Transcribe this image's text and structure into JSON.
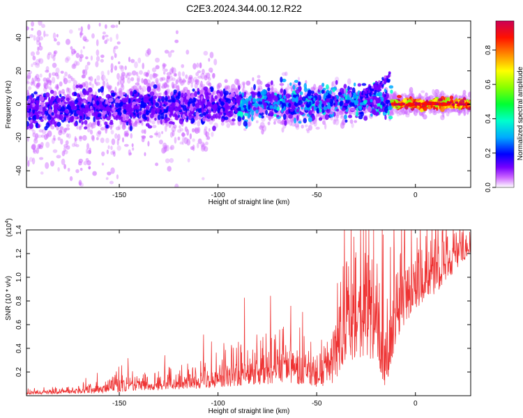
{
  "title": "C2E3.2024.344.00.12.R22",
  "chart_data": [
    {
      "type": "heatmap",
      "xlabel": "Height of straight line (km)",
      "ylabel": "Frequency (Hz)",
      "xlim": [
        -197,
        28
      ],
      "ylim": [
        -50,
        50
      ],
      "xticks": [
        -150,
        -100,
        -50,
        0
      ],
      "yticks": [
        -40,
        -20,
        0,
        20,
        40
      ],
      "colorbar": {
        "label": "Normalized spectral amplitude",
        "range": [
          0.0,
          0.97
        ],
        "ticks": [
          0.0,
          0.2,
          0.4,
          0.6,
          0.8
        ],
        "colormap": [
          "#ffffff",
          "#cc44ff",
          "#4400ff",
          "#0000ff",
          "#00ccff",
          "#00ff88",
          "#44ff00",
          "#ffff00",
          "#ff8800",
          "#ff0000",
          "#cc0044"
        ]
      },
      "ridges": [
        {
          "description_free": true,
          "x": [
            -195,
            -150,
            -100,
            -60,
            -40,
            -20,
            -12,
            0,
            10,
            28
          ],
          "y": [
            -3,
            -2,
            -1,
            1,
            2,
            1,
            0,
            0,
            0,
            0
          ]
        },
        {
          "x": [
            -28,
            -20,
            -13
          ],
          "y": [
            4,
            10,
            17
          ]
        }
      ],
      "grid": false
    },
    {
      "type": "line",
      "xlabel": "Height of straight line (km)",
      "ylabel": "SNR (10 * v/v)",
      "y_multiplier_label": "(x10",
      "y_multiplier_exp": "4",
      "y_multiplier_close": ")",
      "xlim": [
        -197,
        28
      ],
      "ylim": [
        0,
        1.4
      ],
      "xticks": [
        -150,
        -100,
        -50,
        0
      ],
      "yticks": [
        0.2,
        0.4,
        0.6,
        0.8,
        1.0,
        1.2,
        1.4
      ],
      "series_color": "#ee3333",
      "envelope": {
        "x": [
          -197,
          -180,
          -160,
          -150,
          -140,
          -120,
          -100,
          -90,
          -80,
          -70,
          -60,
          -50,
          -45,
          -40,
          -35,
          -30,
          -25,
          -20,
          -15,
          -10,
          -5,
          0,
          5,
          10,
          15,
          20,
          28
        ],
        "base": [
          0.01,
          0.015,
          0.02,
          0.03,
          0.04,
          0.05,
          0.07,
          0.08,
          0.09,
          0.1,
          0.1,
          0.07,
          0.08,
          0.12,
          0.22,
          0.3,
          0.3,
          0.25,
          0.05,
          0.45,
          0.62,
          0.7,
          0.82,
          0.85,
          0.95,
          1.05,
          1.2
        ],
        "amp": [
          0.03,
          0.04,
          0.06,
          0.12,
          0.1,
          0.12,
          0.15,
          0.25,
          0.3,
          0.35,
          0.3,
          0.2,
          0.35,
          0.55,
          0.7,
          0.9,
          0.9,
          0.8,
          0.4,
          0.7,
          0.55,
          0.5,
          0.4,
          0.5,
          0.4,
          0.3,
          0.15
        ]
      }
    }
  ]
}
